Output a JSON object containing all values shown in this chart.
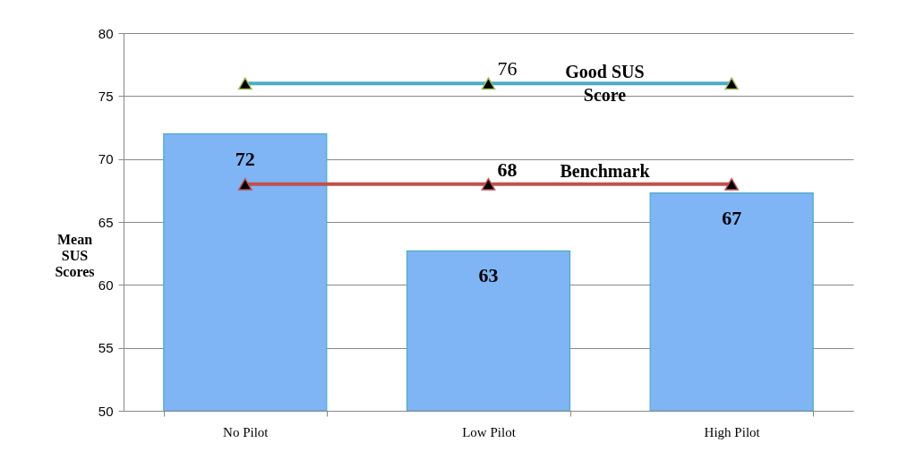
{
  "chart_data": {
    "type": "bar",
    "ylabel": "Mean SUS Scores",
    "categories": [
      "No Pilot",
      "Low Pilot",
      "High Pilot"
    ],
    "series": [
      {
        "color": "#7fb4f5",
        "values": [
          72,
          62.7,
          67.3
        ],
        "value_labels": [
          "72",
          "63",
          "67"
        ]
      },
      {
        "type": "line",
        "name": "Good SUS Score",
        "color": "#4bacc6",
        "values": [
          76,
          76,
          76
        ],
        "value_labels": [
          null,
          "76",
          null
        ]
      },
      {
        "type": "line",
        "name": "Benchmark",
        "color": "#c0504d",
        "values": [
          68,
          68,
          68
        ],
        "value_labels": [
          null,
          "68",
          null
        ]
      }
    ],
    "ylim": [
      50,
      80
    ],
    "yticks": [
      50,
      55,
      60,
      65,
      70,
      75,
      80
    ],
    "grid": "y",
    "marker": "triangle"
  }
}
